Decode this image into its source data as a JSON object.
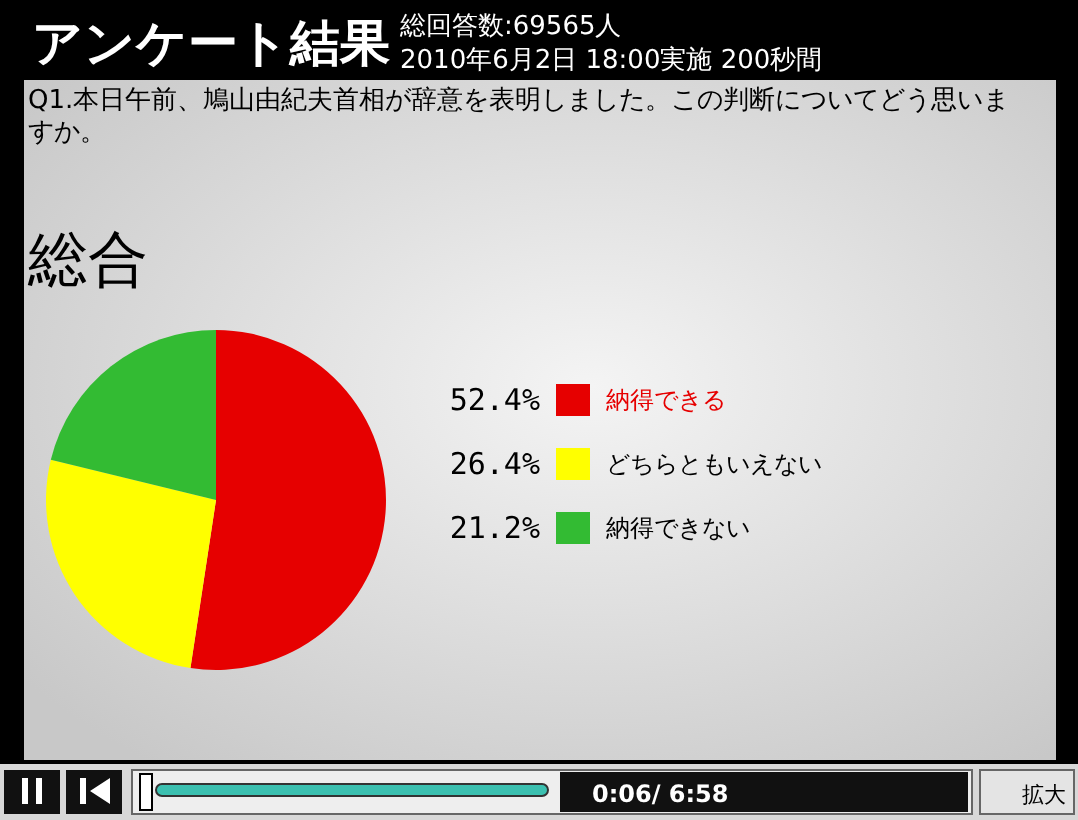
{
  "chart_data": {
    "type": "pie",
    "title": "アンケート結果",
    "subtitle": "Q1.本日午前、鳩山由紀夫首相が辞意を表明しました。この判断についてどう思いますか。",
    "categories": [
      "納得できる",
      "どちらともいえない",
      "納得できない"
    ],
    "values": [
      52.4,
      26.4,
      21.2
    ],
    "colors": [
      "#e60000",
      "#ffff00",
      "#33bb33"
    ],
    "value_labels": [
      "52.4%",
      "26.4%",
      "21.2%"
    ],
    "legend": "right",
    "annotations": [
      "総回答数:69565人",
      "2010年6月2日 18:00実施 200秒間",
      "総合",
      "0:06/ 6:58",
      "拡大"
    ]
  }
}
